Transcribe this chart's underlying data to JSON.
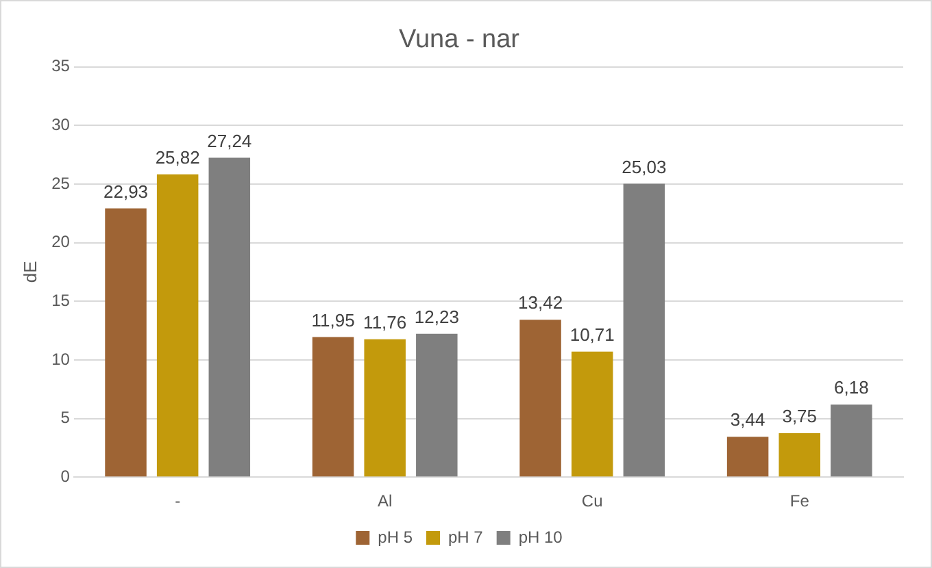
{
  "chart_data": {
    "type": "bar",
    "title": "Vuna - nar",
    "ylabel": "dE",
    "categories": [
      "-",
      "Al",
      "Cu",
      "Fe"
    ],
    "series": [
      {
        "name": "pH 5",
        "color": "#9e6434",
        "values": [
          22.93,
          11.95,
          13.42,
          3.44
        ],
        "value_labels": [
          "22,93",
          "11,95",
          "13,42",
          "3,44"
        ]
      },
      {
        "name": "pH 7",
        "color": "#c39a0c",
        "values": [
          25.82,
          11.76,
          10.71,
          3.75
        ],
        "value_labels": [
          "25,82",
          "11,76",
          "10,71",
          "3,75"
        ]
      },
      {
        "name": "pH 10",
        "color": "#7f7f7f",
        "values": [
          27.24,
          12.23,
          25.03,
          6.18
        ],
        "value_labels": [
          "27,24",
          "12,23",
          "25,03",
          "6,18"
        ]
      }
    ],
    "ylim": [
      0,
      35
    ],
    "yticks": [
      0,
      5,
      10,
      15,
      20,
      25,
      30,
      35
    ],
    "grid": "y",
    "legend": "bottom"
  }
}
